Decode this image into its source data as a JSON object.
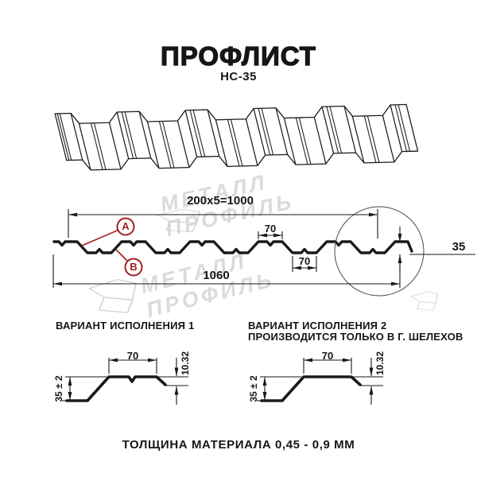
{
  "header": {
    "title": "ПРОФЛИСТ",
    "subtitle": "НС-35"
  },
  "section_drawing": {
    "dim_coverage": "200х5=1000",
    "dim_rib_top": "70",
    "dim_rib_bottom": "70",
    "dim_total_width": "1060",
    "dim_height": "35",
    "callout_a": "A",
    "callout_b": "B"
  },
  "variant1": {
    "title": "ВАРИАНТ ИСПОЛНЕНИЯ 1",
    "dim_top": "70",
    "dim_lap": "10.32",
    "dim_height": "35 ± 2"
  },
  "variant2": {
    "title": "ВАРИАНТ ИСПОЛНЕНИЯ 2",
    "subtitle": "ПРОИЗВОДИТСЯ ТОЛЬКО В Г. ШЕЛЕХОВ",
    "dim_top": "70",
    "dim_lap": "10.32",
    "dim_height": "35 ± 2"
  },
  "footer": {
    "thickness": "ТОЛЩИНА МАТЕРИАЛА 0,45 - 0,9 ММ"
  },
  "watermark": {
    "text": "МЕТАЛЛ ПРОФИЛЬ"
  },
  "colors": {
    "callout_red": "#a22020",
    "line_black": "#1a1a1a",
    "watermark_gray": "#dbdbdb"
  }
}
